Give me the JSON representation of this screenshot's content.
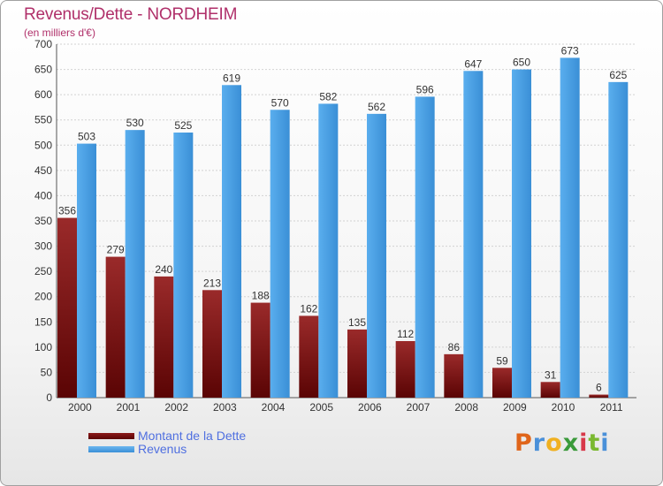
{
  "header": {
    "title": "Revenus/Dette - NORDHEIM",
    "subtitle": "(en milliers d'€)"
  },
  "colors": {
    "title": "#b0306a",
    "dette": "#7a1212",
    "revenus": "#4aa2e8",
    "legend_text": "#4f6fe0"
  },
  "logo": {
    "text": "Proxiti"
  },
  "chart_data": {
    "type": "bar",
    "title": "Revenus/Dette - NORDHEIM",
    "subtitle": "(en milliers d'€)",
    "xlabel": "",
    "ylabel": "",
    "ylim": [
      0,
      700
    ],
    "yticks": [
      0,
      50,
      100,
      150,
      200,
      250,
      300,
      350,
      400,
      450,
      500,
      550,
      600,
      650,
      700
    ],
    "grid": true,
    "legend_position": "bottom-left",
    "categories": [
      "2000",
      "2001",
      "2002",
      "2003",
      "2004",
      "2005",
      "2006",
      "2007",
      "2008",
      "2009",
      "2010",
      "2011"
    ],
    "series": [
      {
        "name": "Montant de la Dette",
        "values": [
          356,
          279,
          240,
          213,
          188,
          162,
          135,
          112,
          86,
          59,
          31,
          6
        ]
      },
      {
        "name": "Revenus",
        "values": [
          503,
          530,
          525,
          619,
          570,
          582,
          562,
          596,
          647,
          650,
          673,
          625
        ]
      }
    ]
  }
}
